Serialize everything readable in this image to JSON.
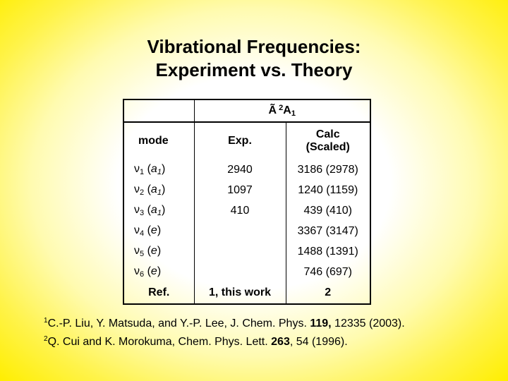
{
  "title": {
    "line1": "Vibrational Frequencies:",
    "line2": "Experiment vs. Theory"
  },
  "table": {
    "state": {
      "symbol": "Ã",
      "multiplicity": "2",
      "term": "A",
      "sub": "1"
    },
    "headers": {
      "mode": "mode",
      "exp": "Exp.",
      "calc_line1": "Calc",
      "calc_line2": "(Scaled)"
    },
    "rows": [
      {
        "nu": "ν",
        "index": "1",
        "sym": "a",
        "sym_sub": "1",
        "exp": "2940",
        "calc": "3186 (2978)"
      },
      {
        "nu": "ν",
        "index": "2",
        "sym": "a",
        "sym_sub": "1",
        "exp": "1097",
        "calc": "1240 (1159)"
      },
      {
        "nu": "ν",
        "index": "3",
        "sym": "a",
        "sym_sub": "1",
        "exp": "410",
        "calc": "439 (410)"
      },
      {
        "nu": "ν",
        "index": "4",
        "sym": "e",
        "sym_sub": "",
        "exp": "",
        "calc": "3367 (3147)"
      },
      {
        "nu": "ν",
        "index": "5",
        "sym": "e",
        "sym_sub": "",
        "exp": "",
        "calc": "1488 (1391)"
      },
      {
        "nu": "ν",
        "index": "6",
        "sym": "e",
        "sym_sub": "",
        "exp": "",
        "calc": "746 (697)"
      }
    ],
    "ref_row": {
      "label": "Ref.",
      "exp": "1, this work",
      "calc": "2"
    }
  },
  "references": [
    {
      "num": "1",
      "text_a": "C.-P. Liu, Y. Matsuda, and Y.-P. Lee, J. Chem. Phys. ",
      "bold": "119,",
      "text_b": " 12335 (2003)."
    },
    {
      "num": "2",
      "text_a": "Q. Cui and K. Morokuma, Chem. Phys. Lett. ",
      "bold": "263",
      "text_b": ", 54 (1996)."
    }
  ]
}
